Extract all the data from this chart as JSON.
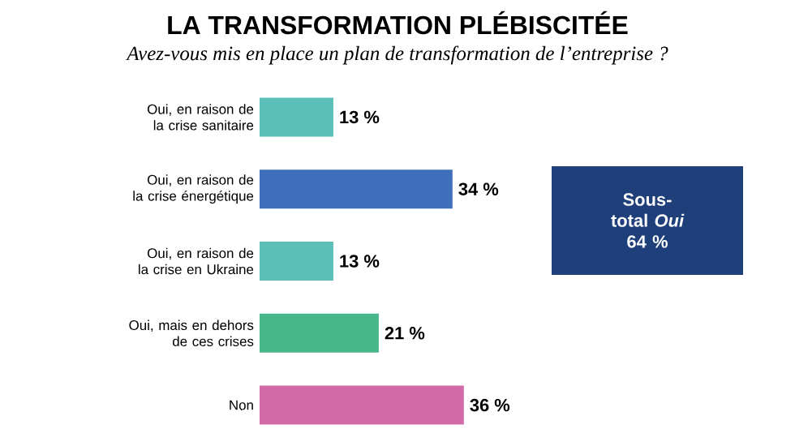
{
  "chart_data": {
    "type": "bar",
    "orientation": "horizontal",
    "title": "LA TRANSFORMATION PLÉBISCITÉE",
    "subtitle": "Avez-vous mis en place un plan de transformation de l’entreprise ?",
    "categories": [
      "Oui, en raison de la crise sanitaire",
      "Oui, en raison de la crise énergétique",
      "Oui, en raison de la crise en Ukraine",
      "Oui, mais en dehors de ces crises",
      "Non"
    ],
    "values": [
      13,
      34,
      13,
      21,
      36
    ],
    "colors": [
      "#5bbfb8",
      "#3f6fbb",
      "#5bbfb8",
      "#47b58a",
      "#d06aa8"
    ],
    "value_labels": [
      "13 %",
      "34 %",
      "13 %",
      "21 %",
      "36 %"
    ],
    "annotations": [
      "Sous-total *Oui* 64 %"
    ]
  }
}
